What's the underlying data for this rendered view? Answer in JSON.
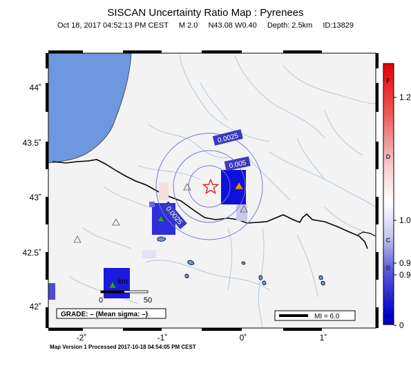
{
  "header": {
    "title": "SISCAN Uncertainty Ratio Map : Pyrenees",
    "date": "Oct 18, 2017 04:52:13 PM CEST",
    "magnitude": "M 2.0",
    "coords": "N43.08 W0.40",
    "depth": "Depth: 2.5km",
    "id": "ID:13829"
  },
  "axes": {
    "lat_ticks": [
      "44˚",
      "43.5˚",
      "43˚",
      "42.5˚",
      "42˚"
    ],
    "lon_ticks": [
      "-2˚",
      "-1˚",
      "0˚",
      "1˚"
    ]
  },
  "contours": [
    "0.0025",
    "0.005",
    "0.0025"
  ],
  "scalebar": {
    "unit": "km",
    "zero": "0",
    "max": "50"
  },
  "grade_box": "GRADE: – (Mean sigma: –)",
  "mi_legend": "MI = 6.0",
  "colorbar": {
    "letters": [
      "F",
      "D",
      "C",
      "B",
      "A"
    ],
    "values": [
      "1.2",
      "1.0",
      "0.9",
      "0.9",
      "0"
    ]
  },
  "footer": "Map Version 1 Processed 2017-10-18 04:54:05 PM CEST"
}
